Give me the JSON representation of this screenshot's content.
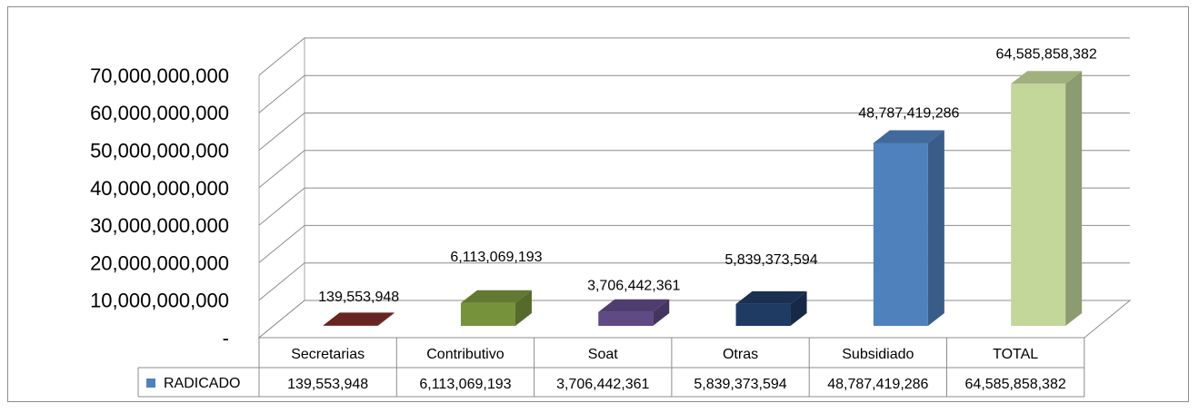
{
  "chart_data": {
    "type": "bar",
    "categories": [
      "Secretarias",
      "Contributivo",
      "Soat",
      "Otras",
      "Subsidiado",
      "TOTAL"
    ],
    "series": [
      {
        "name": "RADICADO",
        "values": [
          139553948,
          6113069193,
          3706442361,
          5839373594,
          48787419286,
          64585858382
        ],
        "value_labels": [
          "139,553,948",
          "6,113,069,193",
          "3,706,442,361",
          "5,839,373,594",
          "48,787,419,286",
          "64,585,858,382"
        ]
      }
    ],
    "bar_colors": [
      "#7f2b2b",
      "#76933c",
      "#5f4a86",
      "#1f3a63",
      "#4f81bd",
      "#c4d79b"
    ],
    "series_color": "#4f81bd",
    "y_tick_labels": [
      "-",
      "10,000,000,000",
      "20,000,000,000",
      "30,000,000,000",
      "40,000,000,000",
      "50,000,000,000",
      "60,000,000,000",
      "70,000,000,000"
    ],
    "ylim": [
      0,
      70000000000
    ],
    "grid": true,
    "legend": "data-table",
    "style": "3d-column"
  }
}
